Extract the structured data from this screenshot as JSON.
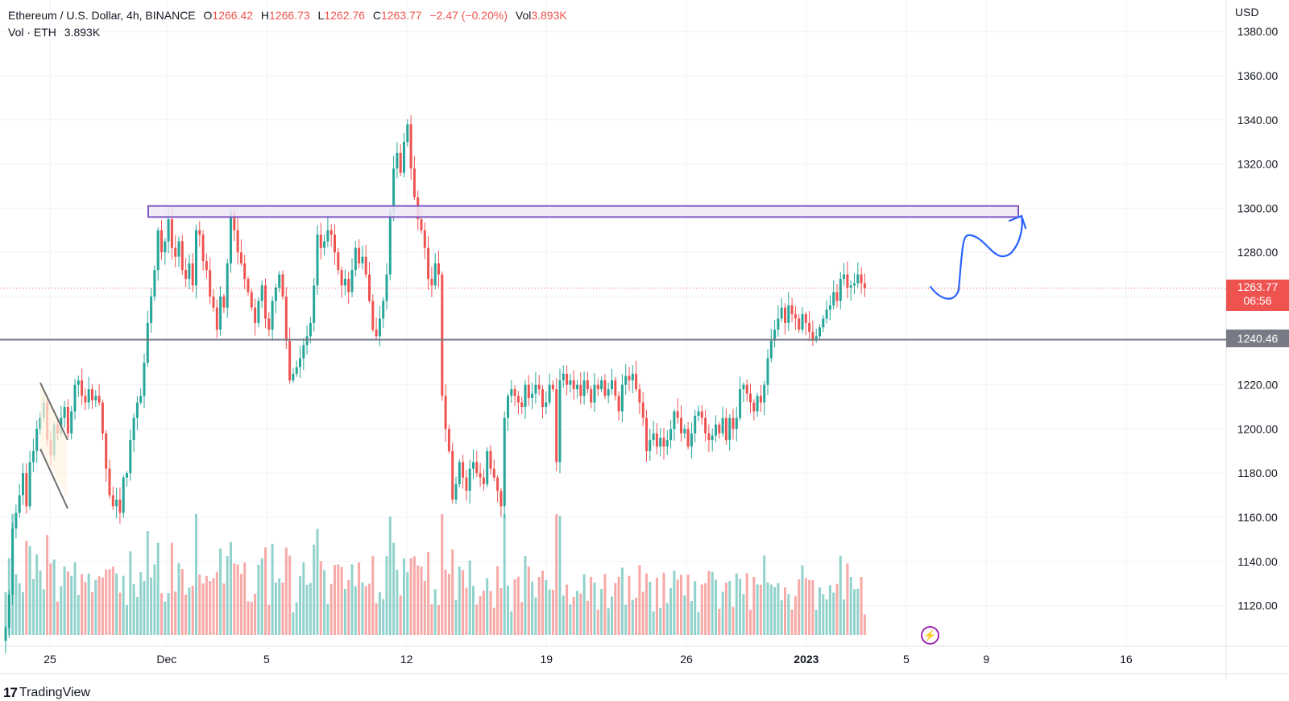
{
  "legend": {
    "symbol": "Ethereum / U.S. Dollar, 4h, BINANCE",
    "o_label": "O",
    "o": "1266.42",
    "h_label": "H",
    "h": "1266.73",
    "l_label": "L",
    "l": "1262.76",
    "c_label": "C",
    "c": "1263.77",
    "change": "−2.47 (−0.20%)",
    "vol_label": "Vol",
    "vol": "3.893K",
    "vol_line_label": "Vol · ETH",
    "vol_line_value": "3.893K"
  },
  "currency": "USD",
  "last_price": {
    "value": "1263.77",
    "countdown": "06:56"
  },
  "support_line": {
    "value": "1240.46"
  },
  "branding": {
    "logo": "17",
    "name": "TradingView"
  },
  "colors": {
    "up": "#26a69a",
    "down": "#ef5350",
    "zone": "#7e57c2",
    "zone_fill": "#ede7f6",
    "drawing": "#2962ff",
    "support": "#787b86"
  },
  "icons": {
    "replay": "lightning-icon"
  },
  "chart_data": {
    "type": "candlestick",
    "symbol": "ETHUSD",
    "interval": "4h",
    "y_ticks": [
      1120,
      1140,
      1160,
      1180,
      1200,
      1220,
      1240,
      1260,
      1280,
      1300,
      1320,
      1340,
      1360,
      1380
    ],
    "y_tick_labels": [
      "1120.00",
      "1140.00",
      "1160.00",
      "1180.00",
      "1200.00",
      "1220.00",
      "",
      "",
      "1280.00",
      "1300.00",
      "1320.00",
      "1340.00",
      "1360.00",
      "1380.00"
    ],
    "ylim": [
      1100,
      1386
    ],
    "x_ticks": [
      {
        "label": "25",
        "pos": 12,
        "bold": false
      },
      {
        "label": "Dec",
        "pos": 47,
        "bold": false
      },
      {
        "label": "5",
        "pos": 77,
        "bold": false
      },
      {
        "label": "12",
        "pos": 119,
        "bold": false
      },
      {
        "label": "19",
        "pos": 161,
        "bold": false
      },
      {
        "label": "26",
        "pos": 203,
        "bold": false
      },
      {
        "label": "2023",
        "pos": 239,
        "bold": true
      },
      {
        "label": "5",
        "pos": 269,
        "bold": false
      },
      {
        "label": "9",
        "pos": 293,
        "bold": false
      },
      {
        "label": "16",
        "pos": 335,
        "bold": false
      }
    ],
    "x_range": [
      -3,
      365
    ],
    "closes": [
      1110,
      1125,
      1155,
      1162,
      1170,
      1180,
      1165,
      1185,
      1190,
      1200,
      1205,
      1212,
      1195,
      1188,
      1202,
      1198,
      1205,
      1210,
      1198,
      1208,
      1220,
      1222,
      1215,
      1212,
      1218,
      1213,
      1215,
      1212,
      1198,
      1182,
      1170,
      1165,
      1168,
      1162,
      1178,
      1180,
      1195,
      1205,
      1212,
      1215,
      1230,
      1248,
      1260,
      1272,
      1290,
      1280,
      1285,
      1295,
      1282,
      1278,
      1285,
      1272,
      1268,
      1275,
      1265,
      1290,
      1288,
      1276,
      1272,
      1260,
      1255,
      1245,
      1260,
      1255,
      1275,
      1298,
      1290,
      1280,
      1275,
      1268,
      1262,
      1255,
      1248,
      1258,
      1265,
      1250,
      1245,
      1258,
      1264,
      1270,
      1260,
      1240,
      1222,
      1225,
      1228,
      1232,
      1238,
      1242,
      1248,
      1265,
      1288,
      1282,
      1285,
      1290,
      1288,
      1280,
      1272,
      1265,
      1268,
      1262,
      1272,
      1282,
      1275,
      1278,
      1270,
      1258,
      1245,
      1242,
      1250,
      1258,
      1270,
      1298,
      1318,
      1325,
      1316,
      1330,
      1338,
      1318,
      1305,
      1295,
      1290,
      1282,
      1268,
      1265,
      1275,
      1270,
      1215,
      1200,
      1190,
      1168,
      1175,
      1185,
      1178,
      1172,
      1182,
      1185,
      1180,
      1178,
      1175,
      1190,
      1182,
      1178,
      1172,
      1165,
      1205,
      1215,
      1218,
      1215,
      1212,
      1210,
      1220,
      1214,
      1216,
      1220,
      1218,
      1210,
      1212,
      1220,
      1218,
      1185,
      1222,
      1225,
      1220,
      1222,
      1218,
      1220,
      1215,
      1222,
      1218,
      1212,
      1220,
      1218,
      1222,
      1215,
      1218,
      1222,
      1215,
      1208,
      1220,
      1224,
      1222,
      1225,
      1218,
      1212,
      1205,
      1190,
      1195,
      1198,
      1192,
      1196,
      1192,
      1195,
      1200,
      1208,
      1205,
      1198,
      1200,
      1192,
      1198,
      1206,
      1208,
      1205,
      1198,
      1195,
      1197,
      1202,
      1198,
      1205,
      1195,
      1205,
      1200,
      1205,
      1218,
      1220,
      1216,
      1212,
      1208,
      1215,
      1212,
      1220,
      1232,
      1240,
      1245,
      1250,
      1255,
      1248,
      1256,
      1252,
      1250,
      1245,
      1252,
      1248,
      1244,
      1240,
      1242,
      1246,
      1250,
      1254,
      1256,
      1262,
      1258,
      1268,
      1270,
      1264,
      1265,
      1266,
      1270,
      1266,
      1263.77
    ],
    "last_price": 1263.77,
    "support_level": 1240.46,
    "resistance_zone": [
      1296,
      1301
    ]
  }
}
